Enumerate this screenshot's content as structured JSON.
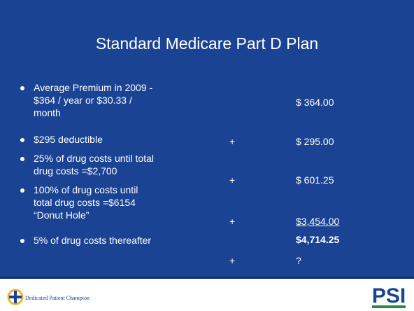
{
  "title": "Standard Medicare Part D Plan",
  "bullets": [
    {
      "lines": [
        "Average Premium in 2009 -",
        "$364 / year or $30.33 /",
        "month"
      ]
    },
    {
      "lines": [
        "$295 deductible"
      ]
    },
    {
      "lines": [
        "25% of drug costs until total",
        "drug costs =$2,700"
      ]
    },
    {
      "lines": [
        "100% of drug costs until",
        "total drug costs =$6154",
        "“Donut Hole”"
      ]
    },
    {
      "lines": [
        "5% of drug costs thereafter"
      ]
    }
  ],
  "amounts": [
    {
      "text": "$ 364.00"
    },
    {
      "sign": "+",
      "text": "$ 295.00"
    },
    {
      "sign": "+",
      "text": "$ 601.25"
    },
    {
      "sign": "+",
      "text": "$3,454.00"
    },
    {
      "sign": "+",
      "text": "?"
    }
  ],
  "total": "$4,714.25",
  "footer": {
    "tagline": "Dedicated Patient Champion",
    "logo": "PSI"
  }
}
